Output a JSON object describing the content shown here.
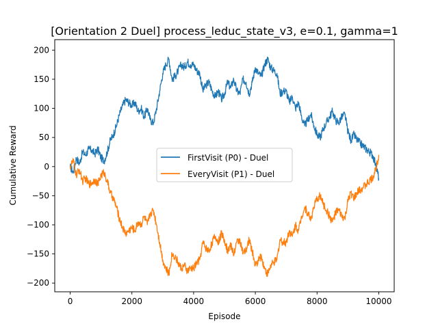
{
  "chart_data": {
    "type": "line",
    "title": "[Orientation 2 Duel] process_leduc_state_v3, e=0.1, gamma=1",
    "xlabel": "Episode",
    "ylabel": "Cumulative Reward",
    "xlim": [
      -500,
      10500
    ],
    "ylim": [
      -215,
      218
    ],
    "xticks": [
      0,
      2000,
      4000,
      6000,
      8000,
      10000
    ],
    "yticks": [
      -200,
      -150,
      -100,
      -50,
      0,
      50,
      100,
      150,
      200
    ],
    "grid": false,
    "legend_position": "center",
    "series": [
      {
        "name": "FirstVisit (P0) - Duel",
        "color": "#1f77b4",
        "x": [
          0,
          100,
          200,
          300,
          400,
          500,
          600,
          700,
          800,
          900,
          1000,
          1100,
          1200,
          1300,
          1400,
          1500,
          1600,
          1700,
          1800,
          1900,
          2000,
          2100,
          2200,
          2300,
          2400,
          2500,
          2600,
          2700,
          2800,
          2900,
          3000,
          3100,
          3200,
          3300,
          3400,
          3500,
          3600,
          3700,
          3800,
          3900,
          4000,
          4100,
          4200,
          4300,
          4400,
          4500,
          4600,
          4700,
          4800,
          4900,
          5000,
          5100,
          5200,
          5300,
          5400,
          5500,
          5600,
          5700,
          5800,
          5900,
          6000,
          6100,
          6200,
          6300,
          6400,
          6500,
          6600,
          6700,
          6800,
          6900,
          7000,
          7100,
          7200,
          7300,
          7400,
          7500,
          7600,
          7700,
          7800,
          7900,
          8000,
          8100,
          8200,
          8300,
          8400,
          8500,
          8600,
          8700,
          8800,
          8900,
          9000,
          9100,
          9200,
          9300,
          9400,
          9500,
          9600,
          9700,
          9800,
          9900,
          10000
        ],
        "y": [
          0,
          -10,
          15,
          5,
          25,
          20,
          30,
          28,
          22,
          30,
          15,
          10,
          25,
          45,
          55,
          70,
          90,
          105,
          115,
          110,
          105,
          110,
          95,
          100,
          85,
          100,
          80,
          75,
          100,
          130,
          160,
          175,
          185,
          150,
          155,
          165,
          175,
          170,
          180,
          175,
          175,
          165,
          160,
          130,
          140,
          145,
          130,
          120,
          130,
          115,
          125,
          145,
          135,
          150,
          130,
          125,
          150,
          145,
          125,
          145,
          170,
          160,
          155,
          175,
          185,
          170,
          165,
          160,
          125,
          130,
          130,
          110,
          120,
          100,
          110,
          85,
          70,
          80,
          90,
          70,
          55,
          50,
          65,
          75,
          85,
          95,
          80,
          75,
          85,
          90,
          60,
          45,
          55,
          45,
          40,
          35,
          30,
          25,
          20,
          5,
          -20
        ]
      },
      {
        "name": "EveryVisit (P1) - Duel",
        "color": "#ff7f0e",
        "x": [
          0,
          100,
          200,
          300,
          400,
          500,
          600,
          700,
          800,
          900,
          1000,
          1100,
          1200,
          1300,
          1400,
          1500,
          1600,
          1700,
          1800,
          1900,
          2000,
          2100,
          2200,
          2300,
          2400,
          2500,
          2600,
          2700,
          2800,
          2900,
          3000,
          3100,
          3200,
          3300,
          3400,
          3500,
          3600,
          3700,
          3800,
          3900,
          4000,
          4100,
          4200,
          4300,
          4400,
          4500,
          4600,
          4700,
          4800,
          4900,
          5000,
          5100,
          5200,
          5300,
          5400,
          5500,
          5600,
          5700,
          5800,
          5900,
          6000,
          6100,
          6200,
          6300,
          6400,
          6500,
          6600,
          6700,
          6800,
          6900,
          7000,
          7100,
          7200,
          7300,
          7400,
          7500,
          7600,
          7700,
          7800,
          7900,
          8000,
          8100,
          8200,
          8300,
          8400,
          8500,
          8600,
          8700,
          8800,
          8900,
          9000,
          9100,
          9200,
          9300,
          9400,
          9500,
          9600,
          9700,
          9800,
          9900,
          10000
        ],
        "y": [
          0,
          10,
          -15,
          -5,
          -25,
          -20,
          -30,
          -28,
          -22,
          -30,
          -15,
          -10,
          -25,
          -45,
          -55,
          -70,
          -90,
          -105,
          -115,
          -110,
          -105,
          -110,
          -95,
          -100,
          -85,
          -100,
          -80,
          -75,
          -100,
          -130,
          -160,
          -175,
          -185,
          -150,
          -155,
          -165,
          -175,
          -170,
          -180,
          -175,
          -175,
          -165,
          -160,
          -130,
          -140,
          -145,
          -130,
          -120,
          -130,
          -115,
          -125,
          -145,
          -135,
          -150,
          -130,
          -125,
          -150,
          -145,
          -125,
          -145,
          -170,
          -160,
          -155,
          -175,
          -185,
          -170,
          -165,
          -160,
          -125,
          -130,
          -130,
          -110,
          -120,
          -100,
          -110,
          -85,
          -70,
          -80,
          -90,
          -70,
          -55,
          -50,
          -65,
          -75,
          -85,
          -95,
          -80,
          -75,
          -85,
          -90,
          -60,
          -45,
          -55,
          -45,
          -40,
          -35,
          -30,
          -25,
          -20,
          -5,
          20
        ]
      }
    ]
  }
}
